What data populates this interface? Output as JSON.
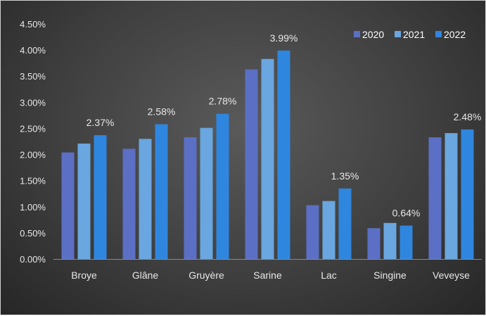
{
  "chart_data": {
    "type": "bar",
    "categories": [
      "Broye",
      "Glâne",
      "Gruyère",
      "Sarine",
      "Lac",
      "Singine",
      "Veveyse"
    ],
    "series": [
      {
        "name": "2020",
        "values": [
          2.04,
          2.11,
          2.33,
          3.63,
          1.03,
          0.59,
          2.33
        ],
        "color": "#5b6fc4"
      },
      {
        "name": "2021",
        "values": [
          2.21,
          2.3,
          2.51,
          3.83,
          1.11,
          0.69,
          2.41
        ],
        "color": "#6aa6df"
      },
      {
        "name": "2022",
        "values": [
          2.37,
          2.58,
          2.78,
          3.99,
          1.35,
          0.64,
          2.48
        ],
        "color": "#2f86de"
      }
    ],
    "data_labels": [
      "2.37%",
      "2.58%",
      "2.78%",
      "3.99%",
      "1.35%",
      "0.64%",
      "2.48%"
    ],
    "ylim": [
      0,
      4.5
    ],
    "y_ticks": [
      "0.00%",
      "0.50%",
      "1.00%",
      "1.50%",
      "2.00%",
      "2.50%",
      "3.00%",
      "3.50%",
      "4.00%",
      "4.50%"
    ],
    "y_tick_values": [
      0,
      0.5,
      1.0,
      1.5,
      2.0,
      2.5,
      3.0,
      3.5,
      4.0,
      4.5
    ],
    "legend_position": "top-right",
    "grid": false,
    "title": "",
    "xlabel": "",
    "ylabel": ""
  }
}
